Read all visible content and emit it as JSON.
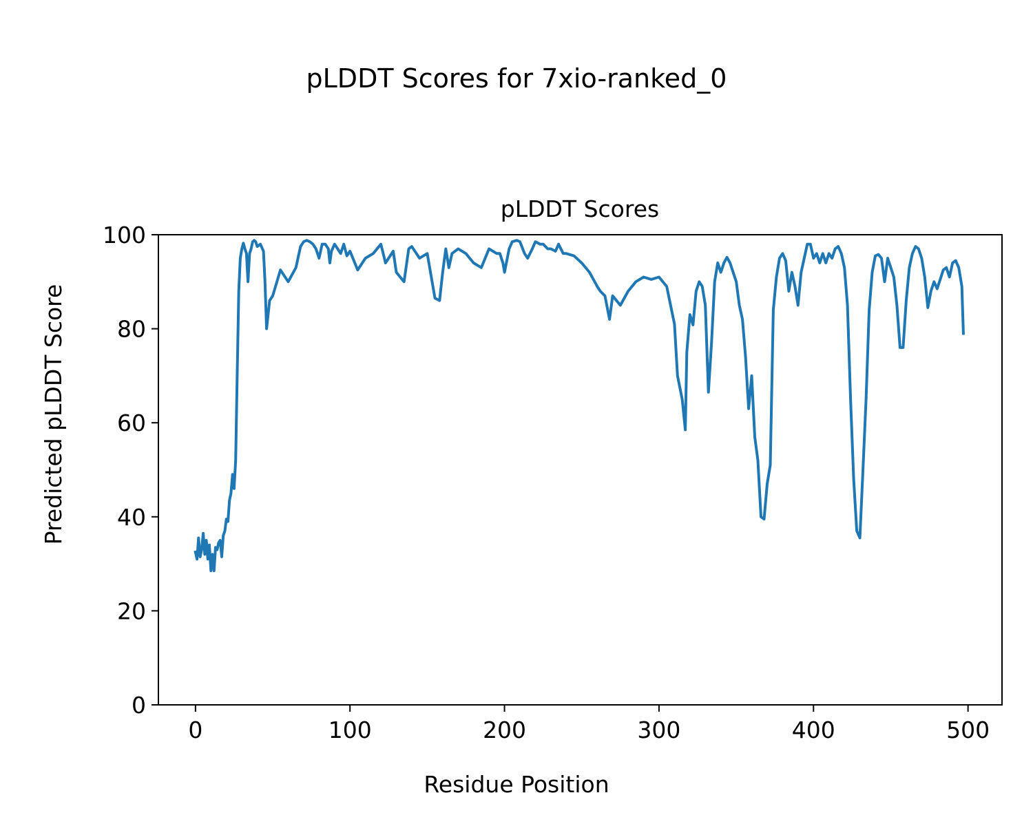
{
  "figure": {
    "suptitle": "pLDDT Scores for 7xio-ranked_0"
  },
  "chart_data": {
    "type": "line",
    "title": "pLDDT Scores",
    "xlabel": "Residue Position",
    "ylabel": "Predicted pLDDT Score",
    "xlim": [
      -24,
      522
    ],
    "ylim": [
      0,
      100
    ],
    "xticks": [
      0,
      100,
      200,
      300,
      400,
      500
    ],
    "yticks": [
      0,
      20,
      40,
      60,
      80,
      100
    ],
    "grid": false,
    "line_color": "#1f77b4",
    "series": [
      {
        "x": [
          0,
          1,
          2,
          3,
          4,
          5,
          6,
          7,
          8,
          9,
          10,
          11,
          12,
          13,
          14,
          15,
          16,
          17,
          18,
          19,
          20,
          21,
          22,
          23,
          24,
          25,
          26,
          27,
          28,
          29,
          30,
          31,
          32,
          33,
          34,
          35,
          36,
          37,
          38,
          39,
          40,
          42,
          44,
          45,
          46,
          48,
          50,
          55,
          60,
          65,
          68,
          70,
          72,
          74,
          76,
          78,
          80,
          82,
          84,
          86,
          87,
          88,
          90,
          92,
          94,
          96,
          98,
          100,
          105,
          110,
          115,
          120,
          123,
          125,
          128,
          130,
          135,
          138,
          140,
          143,
          145,
          150,
          155,
          158,
          160,
          162,
          164,
          166,
          170,
          175,
          180,
          185,
          190,
          195,
          197,
          199,
          200,
          203,
          205,
          208,
          210,
          213,
          215,
          218,
          220,
          223,
          225,
          228,
          230,
          233,
          235,
          238,
          240,
          245,
          250,
          255,
          260,
          262,
          265,
          268,
          270,
          275,
          280,
          285,
          290,
          295,
          300,
          305,
          310,
          312,
          315,
          317,
          318,
          320,
          322,
          324,
          326,
          328,
          330,
          332,
          334,
          336,
          338,
          340,
          342,
          344,
          346,
          348,
          350,
          352,
          354,
          356,
          358,
          360,
          362,
          364,
          366,
          368,
          370,
          372,
          374,
          376,
          378,
          380,
          382,
          384,
          386,
          388,
          390,
          392,
          394,
          396,
          398,
          400,
          402,
          404,
          406,
          408,
          410,
          412,
          414,
          416,
          418,
          420,
          422,
          424,
          426,
          428,
          430,
          432,
          434,
          436,
          438,
          440,
          442,
          444,
          446,
          448,
          450,
          452,
          454,
          456,
          458,
          460,
          462,
          464,
          466,
          468,
          470,
          472,
          474,
          476,
          478,
          480,
          482,
          484,
          486,
          488,
          490,
          492,
          494,
          496,
          497
        ],
        "y": [
          32.5,
          31,
          35.5,
          31.5,
          33,
          36.5,
          32,
          35,
          31,
          34,
          28.5,
          32,
          28.5,
          33.5,
          33,
          34.5,
          35,
          31.5,
          36,
          37,
          39.5,
          39,
          43.5,
          45,
          49,
          46,
          52,
          70,
          88,
          95,
          97,
          98.2,
          97,
          96,
          90,
          96,
          97,
          98.5,
          98.8,
          98.5,
          97.5,
          98,
          96.5,
          90,
          80,
          86,
          87,
          92.5,
          90,
          93,
          97.5,
          98.5,
          98.8,
          98.5,
          98,
          97,
          95,
          98,
          98,
          97,
          94,
          96.5,
          98,
          97,
          96,
          98,
          95.5,
          96.5,
          92.5,
          95,
          96,
          98,
          94,
          95,
          96.5,
          92,
          90,
          97,
          97.5,
          96,
          95,
          96,
          86.5,
          86,
          92,
          97,
          93,
          96,
          97,
          96,
          94,
          93,
          97,
          96,
          96,
          94,
          92,
          97,
          98.5,
          98.8,
          98.5,
          96,
          95,
          97,
          98.5,
          98,
          98,
          97,
          97,
          96.5,
          98,
          96,
          96,
          95.5,
          94,
          92,
          89,
          88,
          87,
          82,
          87,
          85,
          88,
          90,
          91,
          90.5,
          91,
          89,
          81,
          70,
          65,
          58.5,
          75,
          83,
          80.8,
          88,
          90,
          89,
          85,
          66.5,
          77,
          90,
          94,
          92,
          94,
          95.2,
          94,
          92,
          90,
          85,
          82,
          74,
          63,
          70,
          57,
          52,
          40,
          39.5,
          47,
          51,
          84,
          91,
          95,
          96,
          94.5,
          88,
          92,
          89,
          85,
          92,
          95,
          98,
          98,
          95,
          96,
          94,
          96,
          94,
          96,
          95,
          97,
          97.5,
          96,
          93,
          85,
          65,
          48,
          37,
          35.5,
          50,
          65,
          84,
          92,
          95.5,
          95.8,
          95,
          90,
          95,
          93,
          91,
          85,
          76,
          76,
          86,
          93,
          96,
          97.5,
          97,
          95,
          91,
          84.5,
          88,
          90,
          88.5,
          90.5,
          92.5,
          93,
          91,
          94,
          94.5,
          93,
          89,
          79
        ]
      }
    ]
  }
}
